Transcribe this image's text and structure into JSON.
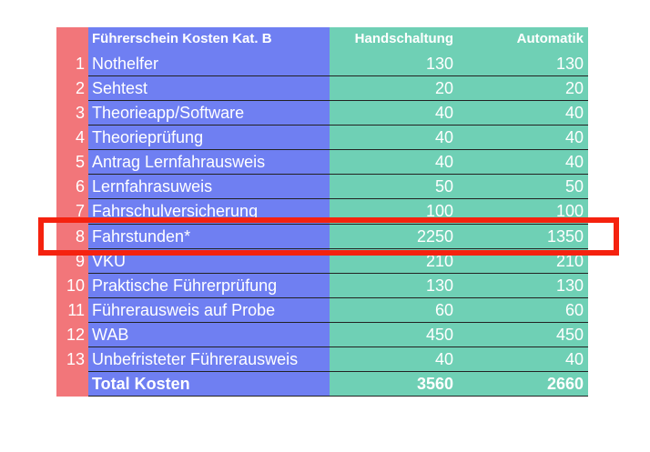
{
  "table": {
    "header": [
      "Führerschein Kosten Kat. B",
      "Handschaltung",
      "Automatik"
    ],
    "rows": [
      [
        1,
        "Nothelfer",
        130,
        130
      ],
      [
        2,
        "Sehtest",
        20,
        20
      ],
      [
        3,
        "Theorieapp/Software",
        40,
        40
      ],
      [
        4,
        "Theorieprüfung",
        40,
        40
      ],
      [
        5,
        "Antrag Lernfahrausweis",
        40,
        40
      ],
      [
        6,
        "Lernfahrasuweis",
        50,
        50
      ],
      [
        7,
        "Fahrschulversicherung",
        100,
        100
      ],
      [
        8,
        "Fahrstunden*",
        2250,
        1350
      ],
      [
        9,
        "VKU",
        210,
        210
      ],
      [
        10,
        "Praktische Führerprüfung",
        130,
        130
      ],
      [
        11,
        "Führerausweis auf Probe",
        60,
        60
      ],
      [
        12,
        "WAB",
        450,
        450
      ],
      [
        13,
        "Unbefristeter Führerausweis",
        40,
        40
      ]
    ],
    "total": [
      "Total Kosten",
      3560,
      2660
    ]
  }
}
